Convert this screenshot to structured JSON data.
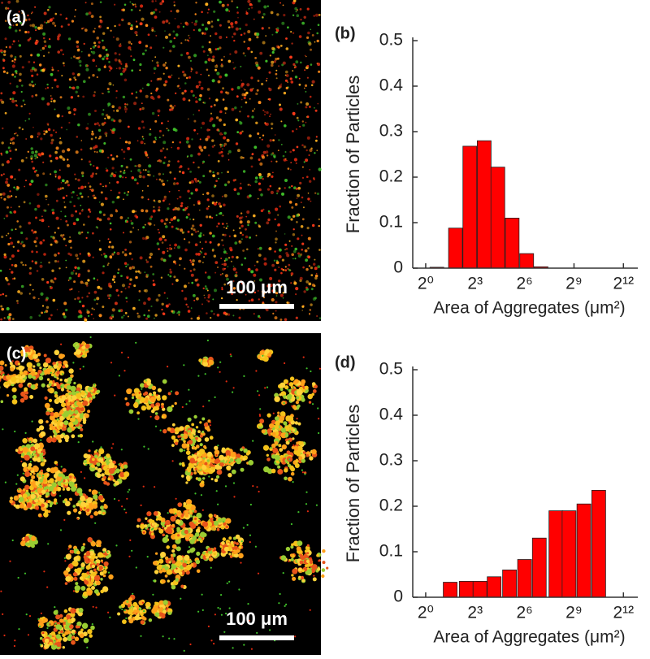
{
  "images": [
    {
      "label": "(a)",
      "scale_bar": "100 μm"
    },
    {
      "label": "(c)",
      "scale_bar": "100 μm"
    }
  ],
  "chart_data": [
    {
      "type": "bar",
      "label": "(b)",
      "x_label": "Area of Aggregates (μm²)",
      "y_label": "Fraction of Particles",
      "x": [
        1.6,
        3.5,
        6.4,
        11.7,
        20.8,
        38,
        70,
        128
      ],
      "values": [
        0.002,
        0.088,
        0.268,
        0.28,
        0.222,
        0.11,
        0.032,
        0.003
      ],
      "color": "#ff0000",
      "xscale": "log2",
      "xlim": [
        0.58,
        7500
      ],
      "xticks": [
        {
          "value": 1,
          "label": "2⁰"
        },
        {
          "value": 8,
          "label": "2³"
        },
        {
          "value": 64,
          "label": "2⁶"
        },
        {
          "value": 512,
          "label": "2⁹"
        },
        {
          "value": 4096,
          "label": "2¹²"
        }
      ],
      "ylim": [
        0,
        0.5
      ],
      "yticks": [
        0,
        0.1,
        0.2,
        0.3,
        0.4,
        0.5
      ]
    },
    {
      "type": "bar",
      "label": "(d)",
      "x_label": "Area of Aggregates (μm²)",
      "y_label": "Fraction of Particles",
      "x": [
        2.8,
        5.5,
        9.8,
        17.8,
        34,
        64,
        119,
        239,
        416,
        776,
        1448
      ],
      "values": [
        0.033,
        0.035,
        0.035,
        0.045,
        0.06,
        0.083,
        0.13,
        0.19,
        0.19,
        0.205,
        0.235
      ],
      "color": "#ff0000",
      "xscale": "log2",
      "xlim": [
        0.58,
        7500
      ],
      "xticks": [
        {
          "value": 1,
          "label": "2⁰"
        },
        {
          "value": 8,
          "label": "2³"
        },
        {
          "value": 64,
          "label": "2⁶"
        },
        {
          "value": 512,
          "label": "2⁹"
        },
        {
          "value": 4096,
          "label": "2¹²"
        }
      ],
      "ylim": [
        0,
        0.5
      ],
      "yticks": [
        0,
        0.1,
        0.2,
        0.3,
        0.4,
        0.5
      ]
    }
  ]
}
